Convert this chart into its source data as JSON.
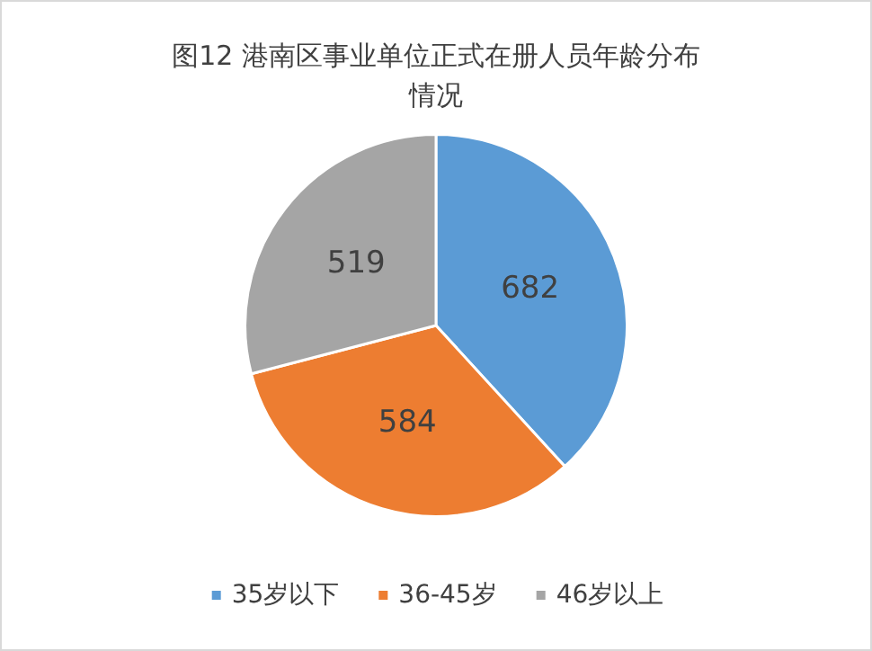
{
  "chart_data": {
    "type": "pie",
    "title": "图12 港南区事业单位正式在册人员年龄分布情况",
    "categories": [
      "35岁以下",
      "36-45岁",
      "46岁以上"
    ],
    "values": [
      682,
      584,
      519
    ],
    "colors": [
      "#5b9bd5",
      "#ed7d31",
      "#a5a5a5"
    ],
    "data_labels": true,
    "legend": "bottom"
  }
}
